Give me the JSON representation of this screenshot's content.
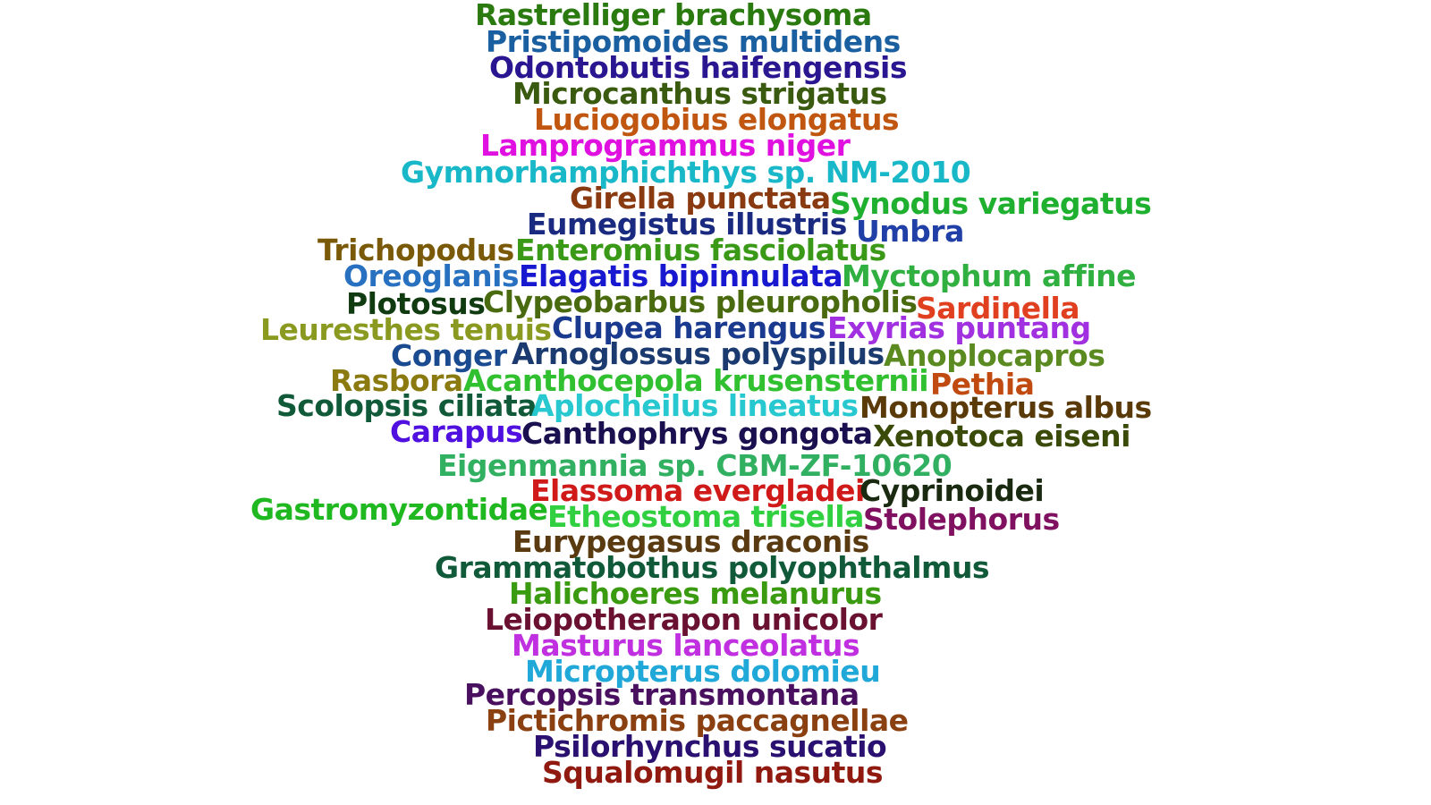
{
  "words": [
    {
      "text": "Rastrelliger brachysoma",
      "color": "#2a7a10"
    },
    {
      "text": "Pristipomoides multidens",
      "color": "#1a5fa0"
    },
    {
      "text": "Odontobutis haifengensis",
      "color": "#2a1690"
    },
    {
      "text": "Microcanthus strigatus",
      "color": "#3a5a10"
    },
    {
      "text": "Luciogobius elongatus",
      "color": "#c0560f"
    },
    {
      "text": "Lamprogrammus niger",
      "color": "#e010e0"
    },
    {
      "text": "Gymnorhamphichthys sp. NM-2010",
      "color": "#18b8c8"
    },
    {
      "text": "Girella punctata",
      "color": "#8a3a10"
    },
    {
      "text": "Synodus variegatus",
      "color": "#20b030"
    },
    {
      "text": "Eumegistus illustris",
      "color": "#1a2a80"
    },
    {
      "text": "Umbra",
      "color": "#2040a8"
    },
    {
      "text": "Trichopodus",
      "color": "#7a5a08"
    },
    {
      "text": "Enteromius fasciolatus",
      "color": "#3a9a18"
    },
    {
      "text": "Oreoglanis",
      "color": "#2870c0"
    },
    {
      "text": "Elagatis bipinnulata",
      "color": "#1818d0"
    },
    {
      "text": "Myctophum affine",
      "color": "#30b040"
    },
    {
      "text": "Plotosus",
      "color": "#103a10"
    },
    {
      "text": "Clypeobarbus pleuropholis",
      "color": "#4a6a10"
    },
    {
      "text": "Sardinella",
      "color": "#e04020"
    },
    {
      "text": "Leuresthes tenuis",
      "color": "#8a9a20"
    },
    {
      "text": "Clupea harengus",
      "color": "#1a3a90"
    },
    {
      "text": "Exyrias puntang",
      "color": "#a030e0"
    },
    {
      "text": "Conger",
      "color": "#1a4a90"
    },
    {
      "text": "Arnoglossus polyspilus",
      "color": "#1a3a70"
    },
    {
      "text": "Anoplocapros",
      "color": "#5a8a20"
    },
    {
      "text": "Rasbora",
      "color": "#8a7a10"
    },
    {
      "text": "Acanthocepola krusensternii",
      "color": "#30c030"
    },
    {
      "text": "Pethia",
      "color": "#c04a10"
    },
    {
      "text": "Scolopsis ciliata",
      "color": "#105a3a"
    },
    {
      "text": "Aplocheilus lineatus",
      "color": "#28c8d0"
    },
    {
      "text": "Monopterus albus",
      "color": "#5a3a08"
    },
    {
      "text": "Carapus",
      "color": "#5010e0"
    },
    {
      "text": "Canthophrys gongota",
      "color": "#1a1050"
    },
    {
      "text": "Xenotoca eiseni",
      "color": "#3a4a08"
    },
    {
      "text": "Eigenmannia sp. CBM-ZF-10620",
      "color": "#30b060"
    },
    {
      "text": "Elassoma evergladei",
      "color": "#d01a1a"
    },
    {
      "text": "Cyprinoidei",
      "color": "#1a2a10"
    },
    {
      "text": "Gastromyzontidae",
      "color": "#20b820"
    },
    {
      "text": "Etheostoma trisella",
      "color": "#30d040"
    },
    {
      "text": "Stolephorus",
      "color": "#801060"
    },
    {
      "text": "Eurypegasus draconis",
      "color": "#5a3a10"
    },
    {
      "text": "Grammatobothus polyophthalmus",
      "color": "#105a3a"
    },
    {
      "text": "Halichoeres melanurus",
      "color": "#3a9a10"
    },
    {
      "text": "Leiopotherapon unicolor",
      "color": "#6a1030"
    },
    {
      "text": "Masturus lanceolatus",
      "color": "#c030e0"
    },
    {
      "text": "Micropterus dolomieu",
      "color": "#20a8d8"
    },
    {
      "text": "Percopsis transmontana",
      "color": "#4a1060"
    },
    {
      "text": "Pictichromis paccagnellae",
      "color": "#8a4010"
    },
    {
      "text": "Psilorhynchus sucatio",
      "color": "#2a1070"
    },
    {
      "text": "Squalomugil nasutus",
      "color": "#901a10"
    }
  ]
}
